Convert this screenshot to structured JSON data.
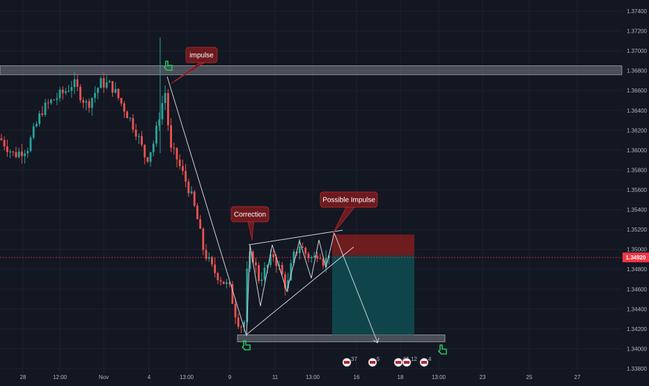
{
  "chart_data": {
    "type": "candlestick",
    "symbol_context": "USD pair (price axis right)",
    "y_axis": {
      "ticks": [
        "1.37400",
        "1.37200",
        "1.37000",
        "1.36800",
        "1.36600",
        "1.36400",
        "1.36200",
        "1.36000",
        "1.35800",
        "1.35600",
        "1.35400",
        "1.35200",
        "1.35000",
        "1.34800",
        "1.34600",
        "1.34400",
        "1.34200",
        "1.34000",
        "1.33800"
      ],
      "ylim": [
        1.3378,
        1.3748
      ]
    },
    "x_axis": {
      "ticks": [
        "28",
        "12:00",
        "Nov",
        "4",
        "13:00",
        "9",
        "11",
        "13:00",
        "16",
        "18",
        "13:00",
        "23",
        "25",
        "27"
      ]
    },
    "current_price": {
      "label": "1.34920",
      "value": 1.3492,
      "color": "#f23645"
    },
    "zones": [
      {
        "name": "resistance-zone",
        "from": 1.3676,
        "to": 1.3685,
        "color": "#787b86"
      },
      {
        "name": "support-zone",
        "from": 1.3407,
        "to": 1.3414,
        "color": "#787b86"
      },
      {
        "name": "stop-zone",
        "from": 1.3494,
        "to": 1.3515,
        "color": "#7f1d1d"
      },
      {
        "name": "target-zone",
        "from": 1.3414,
        "to": 1.3494,
        "color": "#0f4a4f"
      }
    ],
    "annotations": [
      {
        "name": "impulse",
        "text": "impulse"
      },
      {
        "name": "correction",
        "text": "Correction"
      },
      {
        "name": "possible-impulse",
        "text": "Possible Impulse"
      }
    ],
    "event_badges": [
      "37",
      "5",
      "47",
      "12",
      "4"
    ],
    "colors": {
      "up": "#26a69a",
      "down": "#ef5350",
      "background": "#131722",
      "grid": "#1e222d",
      "callout": "#6d1a1f"
    }
  }
}
